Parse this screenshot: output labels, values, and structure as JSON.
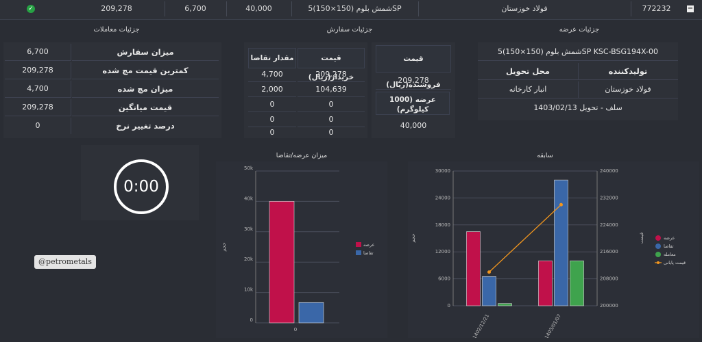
{
  "top_row": {
    "id": "772232",
    "producer": "فولاد خوزستان",
    "product": "شمش بلوم (150×150)5SP",
    "supply_amount": "40,000",
    "traded_amount": "6,700",
    "avg_price": "209,278"
  },
  "sections": {
    "offer_details": "جزئیات عرضه",
    "order_details": "جزئیات سفارش",
    "trade_details": "جزئیات معاملات"
  },
  "offer": {
    "product_title": "شمش بلوم (150×150)5SP KSC-BSG194X-00",
    "producer_label": "تولیدکننده",
    "delivery_label": "محل تحویل",
    "producer_value": "فولاد خوزستان",
    "delivery_value": "انبار کارخانه",
    "delivery_note": "سلف - تحویل 1403/02/13"
  },
  "order": {
    "seller_price_label": "قیمت فروشنده(ریال)",
    "seller_price": "209,278",
    "supply_label": "عرضه (1000 کیلوگرم)",
    "supply_value": "40,000",
    "buyer_price_label": "قیمت خریدار(ریال)",
    "demand_qty_label": "مقدار تقاضا",
    "rows": [
      {
        "price": "209,278",
        "qty": "4,700"
      },
      {
        "price": "104,639",
        "qty": "2,000"
      },
      {
        "price": "0",
        "qty": "0"
      },
      {
        "price": "0",
        "qty": "0"
      },
      {
        "price": "0",
        "qty": "0"
      }
    ]
  },
  "trades": {
    "rows": [
      {
        "label": "میزان سفارش",
        "value": "6,700"
      },
      {
        "label": "کمترین قیمت مچ شده",
        "value": "209,278"
      },
      {
        "label": "میزان مچ شده",
        "value": "4,700"
      },
      {
        "label": "قیمت میانگین",
        "value": "209,278"
      },
      {
        "label": "درصد تغییر نرخ",
        "value": "0"
      }
    ]
  },
  "timer": "0:00",
  "watermark": "@petrometals",
  "colors": {
    "supply": "#c0114a",
    "demand": "#3a67a8",
    "trade": "#3fa34d",
    "price_line": "#f2961e"
  },
  "chart_data": [
    {
      "type": "bar",
      "title": "میزان عرضه/تقاضا",
      "ylabel": "حجم",
      "categories": [
        "0"
      ],
      "ylim": [
        0,
        50000
      ],
      "yticks": [
        "0",
        "10k",
        "20k",
        "30k",
        "40k",
        "50k"
      ],
      "series": [
        {
          "name": "عرضه",
          "values": [
            40000
          ]
        },
        {
          "name": "تقاضا",
          "values": [
            6700
          ]
        }
      ],
      "legend": "right"
    },
    {
      "type": "bar",
      "title": "سابقه",
      "ylabel": "حجم",
      "y2label": "قیمت",
      "categories": [
        "1402/12/21",
        "1403/01/07"
      ],
      "ylim": [
        0,
        30000
      ],
      "yticks": [
        "0",
        "6000",
        "12000",
        "18000",
        "24000",
        "30000"
      ],
      "y2lim": [
        200000,
        240000
      ],
      "y2ticks": [
        "200000",
        "208000",
        "216000",
        "224000",
        "232000",
        "240000"
      ],
      "series": [
        {
          "name": "عرضه",
          "values": [
            16500,
            10000
          ]
        },
        {
          "name": "تقاضا",
          "values": [
            6500,
            28000
          ]
        },
        {
          "name": "معامله",
          "values": [
            500,
            10000
          ]
        },
        {
          "name": "قیمت پایانی",
          "type": "line",
          "axis": "y2",
          "values": [
            210000,
            230000
          ]
        }
      ],
      "legend": "right"
    }
  ]
}
